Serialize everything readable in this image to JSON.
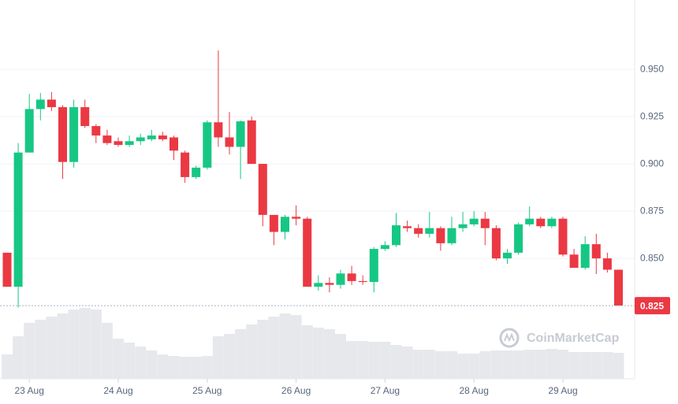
{
  "chart_data": {
    "type": "candlestick",
    "categories": [
      null,
      null,
      "23 Aug",
      null,
      null,
      null,
      null,
      null,
      null,
      null,
      "24 Aug",
      null,
      null,
      null,
      null,
      null,
      null,
      null,
      "25 Aug",
      null,
      null,
      null,
      null,
      null,
      null,
      null,
      "26 Aug",
      null,
      null,
      null,
      null,
      null,
      null,
      null,
      "27 Aug",
      null,
      null,
      null,
      null,
      null,
      null,
      null,
      "28 Aug",
      null,
      null,
      null,
      null,
      null,
      null,
      null,
      "29 Aug",
      null,
      null,
      null,
      null,
      null
    ],
    "open": [
      0.853,
      0.835,
      0.906,
      0.929,
      0.934,
      0.93,
      0.901,
      0.93,
      0.92,
      0.915,
      0.912,
      0.91,
      0.912,
      0.913,
      0.915,
      0.914,
      0.906,
      0.893,
      0.898,
      0.922,
      0.914,
      0.909,
      0.923,
      0.9,
      0.873,
      0.864,
      0.872,
      0.871,
      0.835,
      0.837,
      0.836,
      0.842,
      0.838,
      0.8375,
      0.855,
      0.857,
      0.867,
      0.866,
      0.863,
      0.866,
      0.858,
      0.866,
      0.868,
      0.871,
      0.866,
      0.85,
      0.853,
      0.868,
      0.871,
      0.867,
      0.871,
      0.852,
      0.845,
      0.8575,
      0.85,
      0.844
    ],
    "high": [
      0.853,
      0.911,
      0.937,
      0.9375,
      0.938,
      0.931,
      0.934,
      0.934,
      0.921,
      0.918,
      0.914,
      0.915,
      0.916,
      0.918,
      0.917,
      0.915,
      0.907,
      0.899,
      0.923,
      0.96,
      0.9275,
      0.923,
      0.925,
      0.9,
      0.873,
      0.873,
      0.878,
      0.872,
      0.841,
      0.84,
      0.844,
      0.846,
      0.841,
      0.856,
      0.859,
      0.874,
      0.87,
      0.868,
      0.8746,
      0.867,
      0.872,
      0.8746,
      0.875,
      0.8746,
      0.8675,
      0.855,
      0.869,
      0.8775,
      0.872,
      0.872,
      0.872,
      0.855,
      0.8617,
      0.863,
      0.853,
      0.844
    ],
    "low": [
      0.835,
      0.824,
      0.906,
      0.923,
      0.928,
      0.892,
      0.898,
      0.919,
      0.911,
      0.91,
      0.909,
      0.909,
      0.91,
      0.912,
      0.912,
      0.902,
      0.89,
      0.892,
      0.897,
      0.909,
      0.905,
      0.892,
      0.9,
      0.867,
      0.857,
      0.86,
      0.8675,
      0.835,
      0.833,
      0.832,
      0.834,
      0.836,
      0.836,
      0.832,
      0.854,
      0.856,
      0.864,
      0.861,
      0.861,
      0.854,
      0.857,
      0.864,
      0.867,
      0.857,
      0.849,
      0.847,
      0.852,
      0.867,
      0.866,
      0.866,
      0.851,
      0.845,
      0.844,
      0.8417,
      0.8425,
      0.825
    ],
    "close": [
      0.835,
      0.906,
      0.929,
      0.934,
      0.93,
      0.901,
      0.93,
      0.92,
      0.915,
      0.911,
      0.91,
      0.912,
      0.914,
      0.915,
      0.913,
      0.907,
      0.893,
      0.898,
      0.922,
      0.914,
      0.909,
      0.9225,
      0.9,
      0.873,
      0.864,
      0.872,
      0.871,
      0.835,
      0.837,
      0.836,
      0.842,
      0.838,
      0.8375,
      0.855,
      0.857,
      0.8675,
      0.866,
      0.863,
      0.866,
      0.858,
      0.866,
      0.868,
      0.871,
      0.866,
      0.85,
      0.853,
      0.868,
      0.871,
      0.867,
      0.871,
      0.852,
      0.845,
      0.8575,
      0.85,
      0.844,
      0.825
    ],
    "volume": [
      31,
      54,
      71,
      75,
      79,
      83,
      88,
      90,
      88,
      71,
      51,
      46,
      41,
      36,
      31,
      29,
      28,
      28,
      29,
      54,
      57,
      63,
      69,
      75,
      79,
      83,
      81,
      68,
      65,
      63,
      57,
      48,
      48,
      47,
      47,
      43,
      41,
      37,
      37,
      35,
      35,
      32,
      32,
      35,
      36,
      36,
      36,
      37,
      37,
      38,
      37,
      34,
      34,
      34,
      34,
      33
    ],
    "up_color": "#16c784",
    "down_color": "#ea3943",
    "volume_color": "#e6e8ec",
    "ylim": [
      0.8167,
      0.9767
    ],
    "yticks": [
      {
        "value": 0.85,
        "label": "0.850"
      },
      {
        "value": 0.875,
        "label": "0.875"
      },
      {
        "value": 0.9,
        "label": "0.900"
      },
      {
        "value": 0.925,
        "label": "0.925"
      },
      {
        "value": 0.95,
        "label": "0.950"
      }
    ],
    "grid": true,
    "last_price": {
      "value": 0.825,
      "label": "0.825"
    },
    "watermark": "CoinMarketCap"
  }
}
